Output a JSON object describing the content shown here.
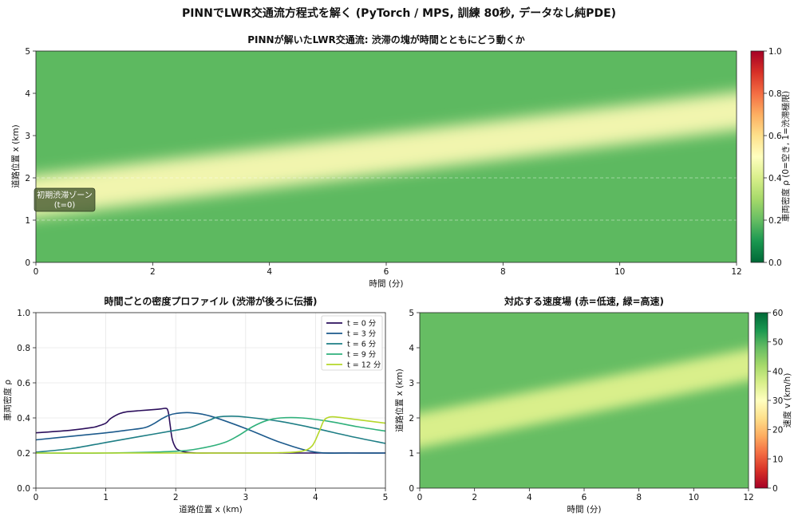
{
  "suptitle": "PINNでLWR交通流方程式を解く (PyTorch / MPS, 訓練 80秒, データなし純PDE)",
  "colors": {
    "jam": "#f1f5ae",
    "free": "#5db960",
    "cmap_density": [
      "#006837",
      "#1a9850",
      "#66bd63",
      "#a6d96a",
      "#d9ef8b",
      "#ffffbf",
      "#fee08b",
      "#fdae61",
      "#f46d43",
      "#d73027",
      "#a50026"
    ]
  },
  "chart_data": [
    {
      "type": "heatmap",
      "title": "PINNが解いたLWR交通流: 渋滞の塊が時間とともにどう動くか",
      "xlabel": "時間 (分)",
      "ylabel": "道路位置 x (km)",
      "xlim": [
        0,
        12
      ],
      "ylim": [
        0,
        5
      ],
      "xticks": [
        "0",
        "2",
        "4",
        "6",
        "8",
        "10",
        "12"
      ],
      "yticks": [
        "0",
        "1",
        "2",
        "3",
        "4",
        "5"
      ],
      "value_range": [
        0,
        1
      ],
      "jam_lower_edge_km": [
        [
          0,
          1.0
        ],
        [
          12,
          3.2
        ]
      ],
      "jam_upper_edge_km": [
        [
          0,
          2.0
        ],
        [
          12,
          4.1
        ]
      ],
      "jam_density": 0.4,
      "background_density": 0.2,
      "initial_zone_lines_km": [
        1,
        2
      ],
      "annotation": {
        "line1": "初期渋滞ゾーン",
        "line2": "(t=0)"
      },
      "colorbar": {
        "label": "車両密度 ρ (0=空き, 1=渋滞極限)",
        "ticks": [
          "0.0",
          "0.2",
          "0.4",
          "0.6",
          "0.8",
          "1.0"
        ]
      }
    },
    {
      "type": "line",
      "title": "時間ごとの密度プロファイル (渋滞が後ろに伝播)",
      "xlabel": "道路位置 x (km)",
      "ylabel": "車両密度 ρ",
      "xlim": [
        0,
        5
      ],
      "ylim": [
        0,
        1
      ],
      "xticks": [
        "0",
        "1",
        "2",
        "3",
        "4",
        "5"
      ],
      "yticks": [
        "0.0",
        "0.2",
        "0.4",
        "0.6",
        "0.8",
        "1.0"
      ],
      "grid": true,
      "legend_position": "top-right",
      "series": [
        {
          "name": "t = 0 分",
          "color": "#2c0f5c",
          "x": [
            0,
            0.5,
            0.8,
            0.9,
            1.0,
            1.05,
            1.1,
            1.2,
            1.3,
            1.5,
            1.7,
            1.8,
            1.85,
            1.88,
            1.9,
            1.92,
            1.95,
            2.0,
            2.05,
            2.15,
            2.3,
            2.5,
            3,
            5
          ],
          "y": [
            0.315,
            0.33,
            0.345,
            0.355,
            0.37,
            0.39,
            0.405,
            0.425,
            0.435,
            0.442,
            0.448,
            0.452,
            0.455,
            0.45,
            0.42,
            0.36,
            0.28,
            0.23,
            0.215,
            0.205,
            0.2,
            0.2,
            0.2,
            0.2
          ]
        },
        {
          "name": "t = 3 分",
          "color": "#1c5a8c",
          "x": [
            0,
            0.5,
            1.0,
            1.3,
            1.5,
            1.6,
            1.7,
            1.8,
            1.9,
            2.0,
            2.2,
            2.5,
            3.0,
            3.5,
            4.0,
            4.5,
            5
          ],
          "y": [
            0.275,
            0.295,
            0.315,
            0.33,
            0.34,
            0.35,
            0.37,
            0.395,
            0.415,
            0.425,
            0.43,
            0.41,
            0.34,
            0.26,
            0.205,
            0.2,
            0.2
          ]
        },
        {
          "name": "t = 6 分",
          "color": "#1e7e85",
          "x": [
            0,
            0.5,
            1.0,
            1.5,
            2.0,
            2.2,
            2.4,
            2.5,
            2.6,
            2.8,
            3.0,
            3.5,
            4.0,
            4.5,
            5
          ],
          "y": [
            0.205,
            0.225,
            0.26,
            0.295,
            0.33,
            0.345,
            0.375,
            0.39,
            0.405,
            0.41,
            0.405,
            0.38,
            0.34,
            0.295,
            0.255
          ]
        },
        {
          "name": "t = 9 分",
          "color": "#2fb07b",
          "x": [
            0,
            1,
            2.0,
            2.4,
            2.7,
            2.9,
            3.1,
            3.3,
            3.5,
            3.8,
            4.2,
            4.6,
            5
          ],
          "y": [
            0.2,
            0.2,
            0.21,
            0.23,
            0.26,
            0.3,
            0.35,
            0.385,
            0.4,
            0.4,
            0.38,
            0.35,
            0.325
          ]
        },
        {
          "name": "t = 12 分",
          "color": "#b5d72a",
          "x": [
            0,
            1,
            2,
            3,
            3.5,
            3.8,
            3.95,
            4.05,
            4.12,
            4.2,
            4.3,
            4.6,
            5
          ],
          "y": [
            0.2,
            0.2,
            0.2,
            0.2,
            0.202,
            0.21,
            0.24,
            0.32,
            0.385,
            0.405,
            0.405,
            0.39,
            0.37
          ]
        }
      ]
    },
    {
      "type": "heatmap",
      "title": "対応する速度場 (赤=低速, 緑=高速)",
      "xlabel": "時間 (分)",
      "ylabel": "道路位置 x (km)",
      "xlim": [
        0,
        12
      ],
      "ylim": [
        0,
        5
      ],
      "xticks": [
        "0",
        "2",
        "4",
        "6",
        "8",
        "10",
        "12"
      ],
      "yticks": [
        "0",
        "1",
        "2",
        "3",
        "4",
        "5"
      ],
      "value_range": [
        0,
        60
      ],
      "jam_speed_kmh": 36,
      "free_speed_kmh": 48,
      "colorbar": {
        "label": "速度 v (km/h)",
        "ticks": [
          "0",
          "10",
          "20",
          "30",
          "40",
          "50",
          "60"
        ]
      }
    }
  ]
}
